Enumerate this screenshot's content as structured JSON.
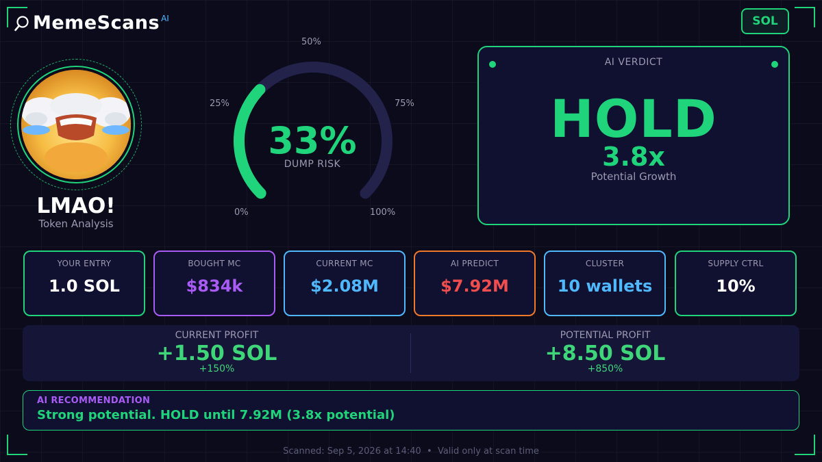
{
  "app": {
    "name": "MemeScans",
    "name_sup": "AI",
    "logo_icon": "magnifier-icon",
    "chain": "SOL"
  },
  "token": {
    "name": "LMAO!",
    "subtitle": "Token Analysis",
    "avatar_icon": "laughing-face-avatar"
  },
  "gauge": {
    "value": 33,
    "value_text": "33%",
    "caption": "DUMP RISK",
    "ticks": [
      "0%",
      "25%",
      "50%",
      "75%",
      "100%"
    ],
    "track_color": "#22224a",
    "fill_color": "#1fd47a"
  },
  "verdict": {
    "title": "AI VERDICT",
    "word": "HOLD",
    "multiplier": "3.8x",
    "sub": "Potential Growth"
  },
  "stats": [
    {
      "label": "YOUR ENTRY",
      "value": "1.0 SOL",
      "border": "#1fd47a",
      "color": "#ffffff"
    },
    {
      "label": "BOUGHT MC",
      "value": "$834k",
      "border": "#a95bf5",
      "color": "#a95bf5"
    },
    {
      "label": "CURRENT MC",
      "value": "$2.08M",
      "border": "#4fb8ff",
      "color": "#4fb8ff"
    },
    {
      "label": "AI PREDICT",
      "value": "$7.92M",
      "border": "#f07a2a",
      "color": "#f04e4e"
    },
    {
      "label": "CLUSTER",
      "value": "10 wallets",
      "border": "#4fb8ff",
      "color": "#4fb8ff"
    },
    {
      "label": "SUPPLY CTRL",
      "value": "10%",
      "border": "#1fd47a",
      "color": "#ffffff"
    }
  ],
  "profit": {
    "current": {
      "label": "CURRENT PROFIT",
      "value": "+1.50 SOL",
      "pct": "+150%"
    },
    "potential": {
      "label": "POTENTIAL PROFIT",
      "value": "+8.50 SOL",
      "pct": "+850%"
    }
  },
  "recommendation": {
    "label": "AI RECOMMENDATION",
    "text": "Strong potential. HOLD until 7.92M (3.8x potential)"
  },
  "footer": {
    "text": "Scanned: Sep 5, 2026 at 14:40  •  Valid only at scan time"
  }
}
